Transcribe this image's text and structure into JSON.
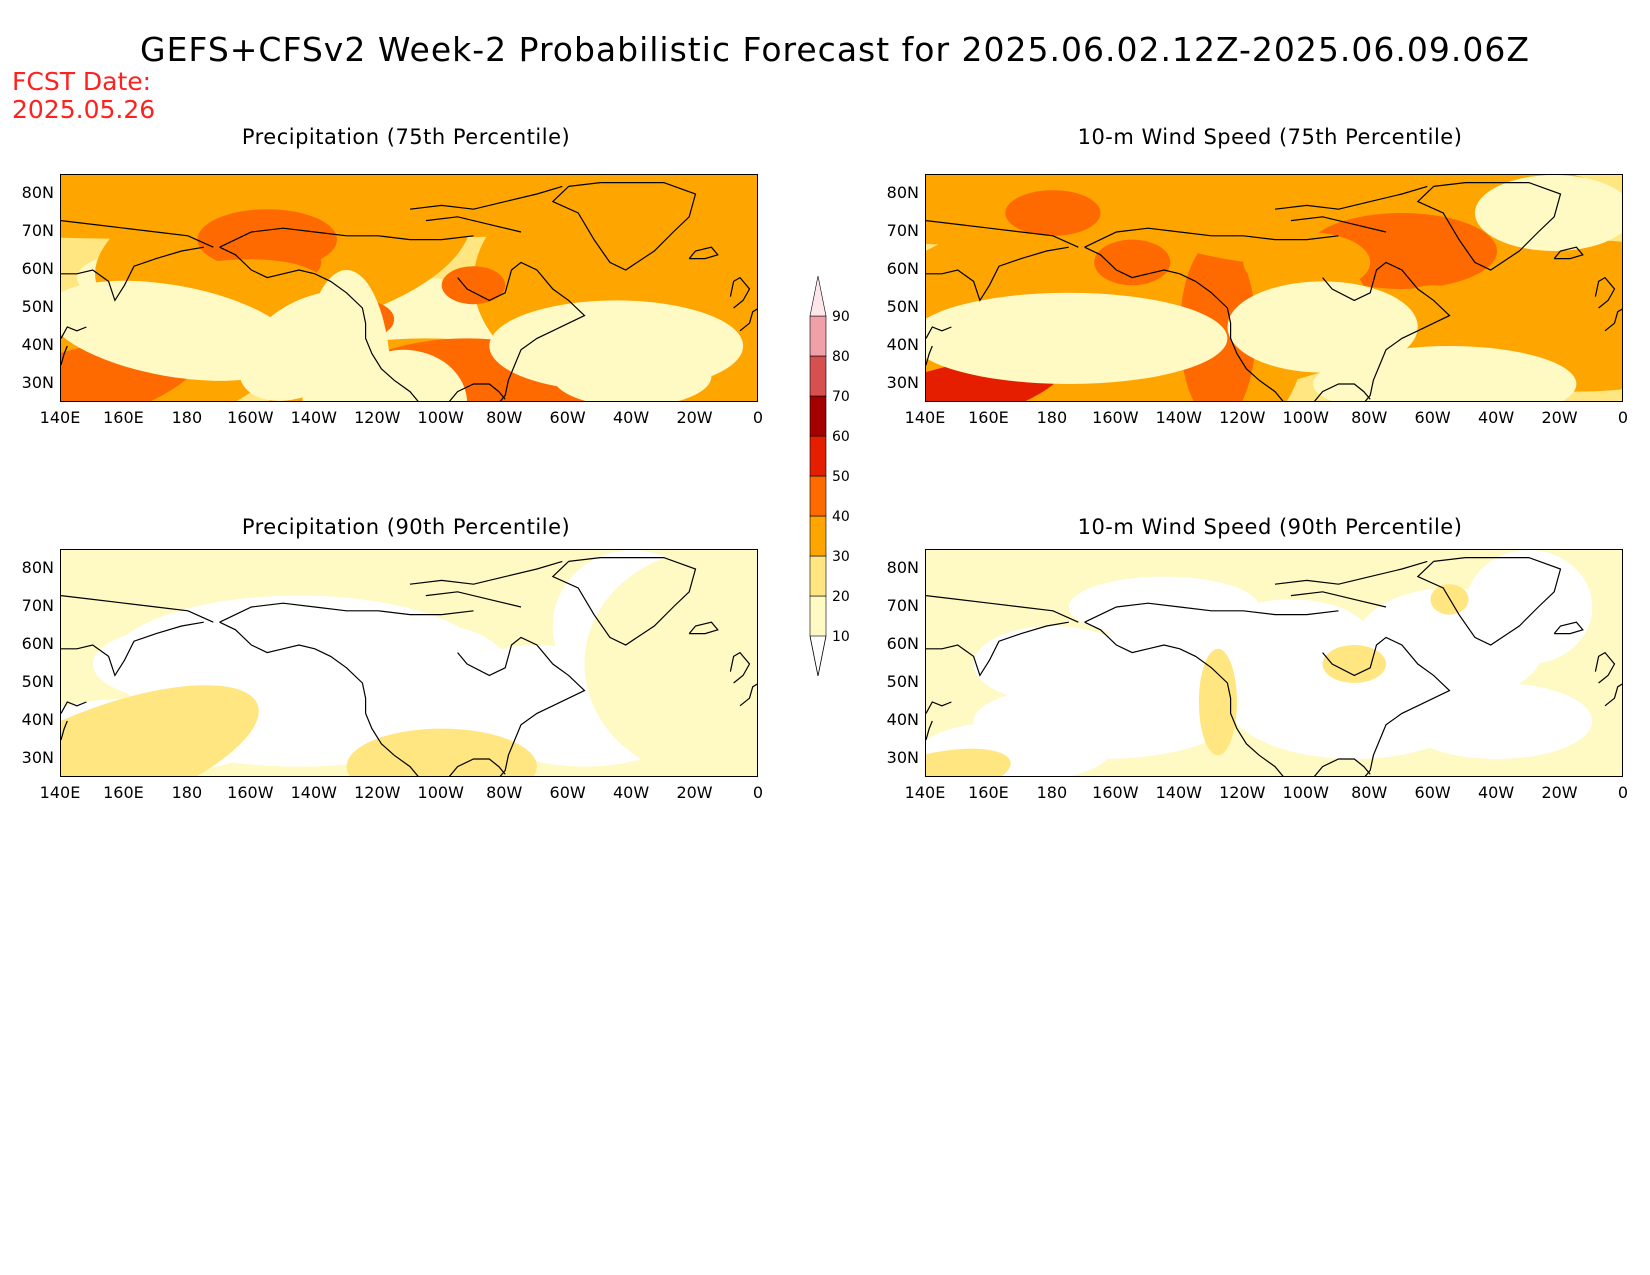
{
  "title": "GEFS+CFSv2 Week-2 Probabilistic Forecast for 2025.06.02.12Z-2025.06.09.06Z",
  "fcst_date_label": "FCST Date:",
  "fcst_date": "2025.05.26",
  "panels": [
    {
      "title": "Precipitation (75th Percentile)",
      "variable": "precip75",
      "base_level": 20
    },
    {
      "title": "10-m Wind Speed (75th Percentile)",
      "variable": "wind75",
      "base_level": 20
    },
    {
      "title": "Precipitation (90th Percentile)",
      "variable": "precip90",
      "base_level": 0
    },
    {
      "title": "10-m Wind Speed (90th Percentile)",
      "variable": "wind90",
      "base_level": 0
    }
  ],
  "lat_labels": [
    "80N",
    "70N",
    "60N",
    "50N",
    "40N",
    "30N"
  ],
  "lon_labels": [
    "140E",
    "160E",
    "180",
    "160W",
    "140W",
    "120W",
    "100W",
    "80W",
    "60W",
    "40W",
    "20W",
    "0"
  ],
  "legend": {
    "levels": [
      "10",
      "20",
      "30",
      "40",
      "50",
      "60",
      "70",
      "80",
      "90"
    ],
    "colors": [
      "#fff9c4",
      "#ffe680",
      "#ffa500",
      "#ff6a00",
      "#e61e00",
      "#a50000",
      "#d65050",
      "#f0a0a8",
      "#ffe6ea"
    ]
  }
}
